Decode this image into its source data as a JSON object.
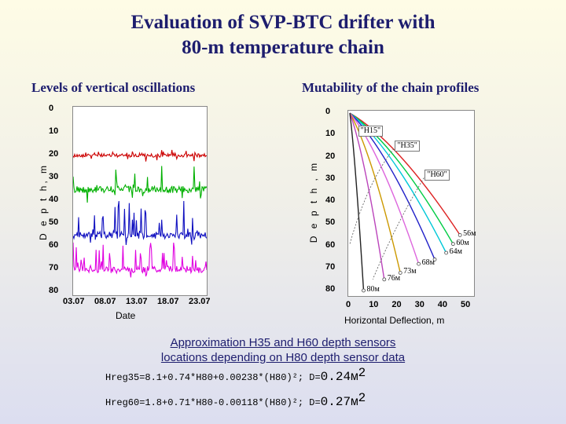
{
  "title_line1": "Evaluation of SVP-BTC drifter with",
  "title_line2": "80-m temperature chain",
  "left_subtitle": "Levels of vertical oscillations",
  "right_subtitle": "Mutability of the chain profiles",
  "bottom_title_line1": "Approximation H35 and H60 depth sensors",
  "bottom_title_line2": "locations  depending on H80 depth sensor data",
  "formula1_main": "Hreg35=8.1+0.74*H80+0.00238*(H80)²; D=",
  "formula1_value": "0.24м",
  "formula1_exp": "2",
  "formula2_main": "Hreg60=1.8+0.71*H80-0.00118*(H80)²; D=",
  "formula2_value": "0.27м",
  "formula2_exp": "2",
  "chart_data": [
    {
      "type": "line",
      "subtitle": "Levels of vertical oscillations",
      "xlabel": "Date",
      "ylabel": "D e p t h,  m",
      "x_ticks": [
        "03.07",
        "08.07",
        "13.07",
        "18.07",
        "23.07"
      ],
      "y_ticks": [
        "0",
        "10",
        "20",
        "30",
        "40",
        "50",
        "60",
        "70",
        "80"
      ],
      "ylim": [
        0,
        80
      ],
      "y_inverted": true,
      "series": [
        {
          "color": "#cc0000",
          "baseline": 20,
          "amplitude": 1.5,
          "spike": 2
        },
        {
          "color": "#00b000",
          "baseline": 35,
          "amplitude": 3,
          "spike": 10
        },
        {
          "color": "#1010c0",
          "baseline": 55,
          "amplitude": 3,
          "spike": 15
        },
        {
          "color": "#e000e0",
          "baseline": 70,
          "amplitude": 3,
          "spike": 12
        }
      ]
    },
    {
      "type": "line",
      "subtitle": "Mutability of the chain profiles",
      "xlabel": "Horizontal Deflection, m",
      "ylabel": "D e p t h ,  m",
      "x_ticks": [
        "0",
        "10",
        "20",
        "30",
        "40",
        "50"
      ],
      "y_ticks": [
        "0",
        "10",
        "20",
        "30",
        "40",
        "50",
        "60",
        "70",
        "80"
      ],
      "xlim": [
        0,
        50
      ],
      "ylim": [
        0,
        80
      ],
      "y_inverted": true,
      "profiles": [
        {
          "color": "#dd2222",
          "label": "56м",
          "end_x": 48,
          "end_y": 55
        },
        {
          "color": "#00cc44",
          "label": "60м",
          "end_x": 45,
          "end_y": 59
        },
        {
          "color": "#00c8d8",
          "label": "64м",
          "end_x": 42,
          "end_y": 63
        },
        {
          "color": "#2020c8",
          "label": "",
          "end_x": 37,
          "end_y": 66
        },
        {
          "color": "#dd66dd",
          "label": "68м",
          "end_x": 30,
          "end_y": 68
        },
        {
          "color": "#cc9900",
          "label": "73м",
          "end_x": 22,
          "end_y": 72
        },
        {
          "color": "#bb44bb",
          "label": "76м",
          "end_x": 15,
          "end_y": 75
        },
        {
          "color": "#222222",
          "label": "80м",
          "end_x": 6,
          "end_y": 80
        }
      ],
      "markers": [
        {
          "label": "\"H15\"",
          "x": 4,
          "y": 8
        },
        {
          "label": "\"H35\"",
          "x": 20,
          "y": 15
        },
        {
          "label": "\"H60\"",
          "x": 33,
          "y": 28
        }
      ]
    }
  ]
}
